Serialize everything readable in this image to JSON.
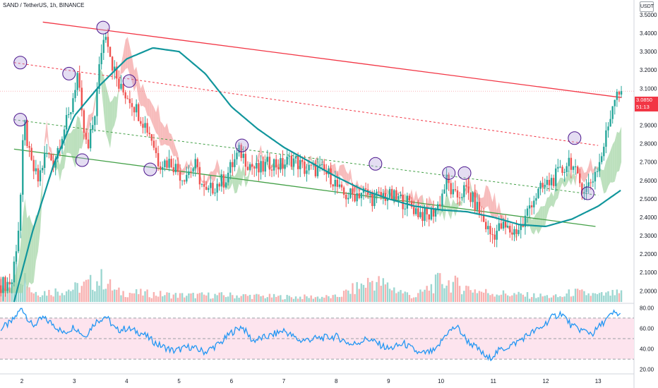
{
  "header": {
    "title": "SAND / TetherUS, 1h, BINANCE",
    "currency_badge": "USDT"
  },
  "price_label": {
    "value": "3.0850",
    "countdown": "51:13"
  },
  "colors": {
    "up": "#26a69a",
    "down": "#ef5350",
    "ma": "#11969c",
    "resistance": "#f23645",
    "support": "#43a047",
    "cloud_up": "#a5d6a7",
    "cloud_down": "#f4a6a6",
    "rsi_line": "#2196f3",
    "rsi_band": "#fde4ee",
    "circle": "#b39ddb"
  },
  "chart_data": [
    {
      "type": "candlestick",
      "title": "SAND / TetherUS, 1h, BINANCE",
      "xlabel": "",
      "ylabel": "",
      "x_ticks": [
        "2",
        "3",
        "4",
        "5",
        "6",
        "7",
        "8",
        "9",
        "10",
        "11",
        "12",
        "13"
      ],
      "y_ticks": [
        "2.0000",
        "2.1000",
        "2.2000",
        "2.3000",
        "2.4000",
        "2.5000",
        "2.6000",
        "2.7000",
        "2.8000",
        "2.9000",
        "3.0000",
        "3.1000",
        "3.2000",
        "3.3000",
        "3.4000",
        "3.5000"
      ],
      "ylim": [
        1.94,
        3.58
      ],
      "last_price": 3.085,
      "price_path": [
        [
          1.6,
          2.03
        ],
        [
          1.85,
          2.05
        ],
        [
          2.0,
          2.4
        ],
        [
          2.05,
          2.75
        ],
        [
          2.1,
          2.9
        ],
        [
          2.2,
          2.7
        ],
        [
          2.35,
          2.6
        ],
        [
          2.5,
          2.75
        ],
        [
          2.65,
          2.7
        ],
        [
          2.8,
          2.85
        ],
        [
          2.95,
          2.95
        ],
        [
          3.1,
          3.18
        ],
        [
          3.2,
          2.9
        ],
        [
          3.3,
          2.75
        ],
        [
          3.45,
          3.0
        ],
        [
          3.55,
          3.3
        ],
        [
          3.65,
          3.42
        ],
        [
          3.75,
          3.25
        ],
        [
          3.9,
          3.1
        ],
        [
          4.1,
          3.05
        ],
        [
          4.3,
          2.95
        ],
        [
          4.5,
          2.85
        ],
        [
          4.65,
          2.7
        ],
        [
          4.9,
          2.7
        ],
        [
          5.1,
          2.62
        ],
        [
          5.35,
          2.68
        ],
        [
          5.55,
          2.52
        ],
        [
          5.75,
          2.58
        ],
        [
          5.9,
          2.6
        ],
        [
          6.05,
          2.68
        ],
        [
          6.2,
          2.76
        ],
        [
          6.35,
          2.7
        ],
        [
          6.55,
          2.65
        ],
        [
          6.8,
          2.7
        ],
        [
          7.0,
          2.68
        ],
        [
          7.2,
          2.72
        ],
        [
          7.45,
          2.66
        ],
        [
          7.7,
          2.66
        ],
        [
          7.95,
          2.62
        ],
        [
          8.15,
          2.52
        ],
        [
          8.35,
          2.52
        ],
        [
          8.55,
          2.54
        ],
        [
          8.75,
          2.5
        ],
        [
          8.95,
          2.52
        ],
        [
          9.2,
          2.5
        ],
        [
          9.4,
          2.48
        ],
        [
          9.6,
          2.43
        ],
        [
          9.8,
          2.4
        ],
        [
          10.0,
          2.47
        ],
        [
          10.15,
          2.6
        ],
        [
          10.3,
          2.5
        ],
        [
          10.5,
          2.55
        ],
        [
          10.7,
          2.47
        ],
        [
          10.85,
          2.38
        ],
        [
          11.0,
          2.3
        ],
        [
          11.2,
          2.35
        ],
        [
          11.4,
          2.32
        ],
        [
          11.6,
          2.35
        ],
        [
          11.75,
          2.48
        ],
        [
          11.95,
          2.55
        ],
        [
          12.15,
          2.6
        ],
        [
          12.35,
          2.65
        ],
        [
          12.5,
          2.72
        ],
        [
          12.65,
          2.6
        ],
        [
          12.8,
          2.55
        ],
        [
          12.95,
          2.62
        ],
        [
          13.1,
          2.72
        ],
        [
          13.25,
          2.92
        ],
        [
          13.38,
          3.1
        ],
        [
          13.45,
          3.085
        ]
      ],
      "moving_average": [
        [
          1.85,
          1.94
        ],
        [
          2.2,
          2.32
        ],
        [
          2.6,
          2.68
        ],
        [
          3.0,
          2.95
        ],
        [
          3.5,
          3.12
        ],
        [
          4.0,
          3.26
        ],
        [
          4.5,
          3.32
        ],
        [
          5.0,
          3.3
        ],
        [
          5.5,
          3.18
        ],
        [
          6.0,
          3.0
        ],
        [
          6.5,
          2.88
        ],
        [
          7.0,
          2.78
        ],
        [
          7.5,
          2.7
        ],
        [
          8.0,
          2.62
        ],
        [
          8.5,
          2.55
        ],
        [
          9.0,
          2.5
        ],
        [
          9.5,
          2.46
        ],
        [
          10.0,
          2.44
        ],
        [
          10.5,
          2.43
        ],
        [
          11.0,
          2.4
        ],
        [
          11.5,
          2.36
        ],
        [
          12.0,
          2.35
        ],
        [
          12.5,
          2.39
        ],
        [
          13.0,
          2.46
        ],
        [
          13.45,
          2.55
        ]
      ],
      "trendlines": [
        {
          "name": "resistance",
          "points": [
            [
              2.4,
              3.46
            ],
            [
              13.45,
              3.05
            ]
          ]
        },
        {
          "name": "upper-channel",
          "points": [
            [
              1.85,
              3.24
            ],
            [
              13.0,
              2.79
            ]
          ]
        },
        {
          "name": "middle-channel",
          "points": [
            [
              1.85,
              2.93
            ],
            [
              13.0,
              2.52
            ]
          ]
        },
        {
          "name": "support",
          "points": [
            [
              1.85,
              2.77
            ],
            [
              12.95,
              2.35
            ]
          ]
        }
      ],
      "pivot_circles": [
        [
          1.97,
          3.24
        ],
        [
          1.97,
          2.93
        ],
        [
          2.9,
          3.18
        ],
        [
          3.15,
          2.71
        ],
        [
          3.55,
          3.43
        ],
        [
          4.05,
          3.14
        ],
        [
          4.45,
          2.66
        ],
        [
          6.2,
          2.79
        ],
        [
          8.75,
          2.69
        ],
        [
          10.15,
          2.64
        ],
        [
          10.45,
          2.64
        ],
        [
          12.55,
          2.83
        ],
        [
          12.8,
          2.53
        ]
      ],
      "volume": [
        [
          1.7,
          0.5
        ],
        [
          1.85,
          0.9
        ],
        [
          2.0,
          1.0
        ],
        [
          2.2,
          0.3
        ],
        [
          2.5,
          0.3
        ],
        [
          3.0,
          0.4
        ],
        [
          3.2,
          0.5
        ],
        [
          3.55,
          0.7
        ],
        [
          3.8,
          0.3
        ],
        [
          5.0,
          0.2
        ],
        [
          6.0,
          0.2
        ],
        [
          7.0,
          0.15
        ],
        [
          8.0,
          0.15
        ],
        [
          8.7,
          0.65
        ],
        [
          9.5,
          0.15
        ],
        [
          10.0,
          0.65
        ],
        [
          10.8,
          0.3
        ],
        [
          11.6,
          0.2
        ],
        [
          12.3,
          0.15
        ],
        [
          12.5,
          0.3
        ],
        [
          13.0,
          0.2
        ],
        [
          13.3,
          0.25
        ]
      ]
    },
    {
      "type": "line",
      "title": "",
      "y_ticks": [
        "20.00",
        "40.00",
        "60.00",
        "80.00"
      ],
      "ylim": [
        17,
        83
      ],
      "overbought": 70,
      "oversold": 30,
      "mid": 50,
      "values": [
        [
          1.6,
          60
        ],
        [
          1.8,
          66
        ],
        [
          2.0,
          80
        ],
        [
          2.2,
          62
        ],
        [
          2.4,
          70
        ],
        [
          2.6,
          64
        ],
        [
          2.8,
          55
        ],
        [
          3.0,
          62
        ],
        [
          3.2,
          52
        ],
        [
          3.4,
          66
        ],
        [
          3.6,
          72
        ],
        [
          3.8,
          58
        ],
        [
          4.0,
          60
        ],
        [
          4.3,
          55
        ],
        [
          4.6,
          44
        ],
        [
          4.9,
          38
        ],
        [
          5.2,
          42
        ],
        [
          5.5,
          37
        ],
        [
          5.8,
          46
        ],
        [
          6.0,
          56
        ],
        [
          6.2,
          62
        ],
        [
          6.4,
          48
        ],
        [
          6.7,
          52
        ],
        [
          7.0,
          58
        ],
        [
          7.3,
          48
        ],
        [
          7.6,
          50
        ],
        [
          8.0,
          52
        ],
        [
          8.3,
          44
        ],
        [
          8.6,
          50
        ],
        [
          9.0,
          40
        ],
        [
          9.3,
          45
        ],
        [
          9.6,
          35
        ],
        [
          9.9,
          38
        ],
        [
          10.1,
          55
        ],
        [
          10.3,
          62
        ],
        [
          10.5,
          48
        ],
        [
          10.7,
          40
        ],
        [
          10.9,
          30
        ],
        [
          11.1,
          38
        ],
        [
          11.4,
          45
        ],
        [
          11.7,
          55
        ],
        [
          11.9,
          60
        ],
        [
          12.1,
          70
        ],
        [
          12.3,
          75
        ],
        [
          12.5,
          62
        ],
        [
          12.7,
          58
        ],
        [
          12.9,
          55
        ],
        [
          13.1,
          66
        ],
        [
          13.3,
          75
        ],
        [
          13.45,
          73
        ]
      ]
    }
  ]
}
